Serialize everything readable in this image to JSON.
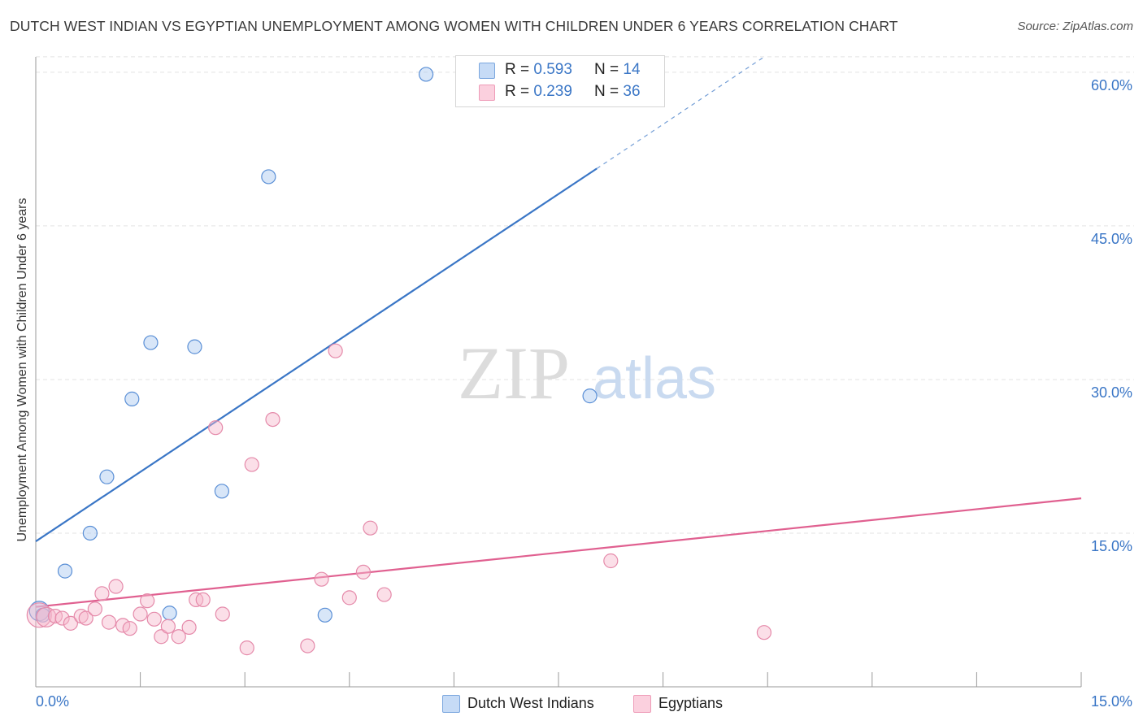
{
  "title": "DUTCH WEST INDIAN VS EGYPTIAN UNEMPLOYMENT AMONG WOMEN WITH CHILDREN UNDER 6 YEARS CORRELATION CHART",
  "source": "Source: ZipAtlas.com",
  "watermark": {
    "zip": "ZIP",
    "atlas": "atlas"
  },
  "legend_top": [
    {
      "r_label": "R = ",
      "r_value": "0.593",
      "n_label": "N = ",
      "n_value": "14",
      "color": "#a9c8f0"
    },
    {
      "r_label": "R = ",
      "r_value": "0.239",
      "n_label": "N = ",
      "n_value": "36",
      "color": "#f7b8cc"
    }
  ],
  "legend_bottom": [
    {
      "label": "Dutch West Indians",
      "color": "#a9c8f0"
    },
    {
      "label": "Egyptians",
      "color": "#f7b8cc"
    }
  ],
  "chart_data": {
    "type": "scatter",
    "xlabel": "",
    "ylabel": "Unemployment Among Women with Children Under 6 years",
    "xlim": [
      0,
      15
    ],
    "ylim": [
      0,
      61.5
    ],
    "x_tick_labels": [
      "0.0%",
      "15.0%"
    ],
    "y_ticks": [
      15,
      30,
      45,
      60
    ],
    "y_tick_labels": [
      "15.0%",
      "30.0%",
      "45.0%",
      "60.0%"
    ],
    "grid": true,
    "series": [
      {
        "name": "Dutch West Indians",
        "color": "#3a76c6",
        "fill": "#a9c8f0",
        "points": [
          [
            0.05,
            7.4
          ],
          [
            0.1,
            7.0
          ],
          [
            0.42,
            11.3
          ],
          [
            0.78,
            15.0
          ],
          [
            1.02,
            20.5
          ],
          [
            1.38,
            28.1
          ],
          [
            1.65,
            33.6
          ],
          [
            1.92,
            7.2
          ],
          [
            2.28,
            33.2
          ],
          [
            2.67,
            19.1
          ],
          [
            3.34,
            49.8
          ],
          [
            4.15,
            7.0
          ],
          [
            5.6,
            59.8
          ],
          [
            7.95,
            28.4
          ]
        ],
        "trend": {
          "x0": 0.0,
          "y0": 14.2,
          "x1": 8.05,
          "y1": 50.6,
          "dash_to_x": 10.45,
          "dash_to_y": 61.5
        }
      },
      {
        "name": "Egyptians",
        "color": "#e06090",
        "fill": "#f7b8cc",
        "points": [
          [
            0.05,
            7.0
          ],
          [
            0.15,
            6.8
          ],
          [
            0.28,
            6.9
          ],
          [
            0.38,
            6.7
          ],
          [
            0.5,
            6.2
          ],
          [
            0.65,
            6.9
          ],
          [
            0.72,
            6.7
          ],
          [
            0.85,
            7.6
          ],
          [
            0.95,
            9.1
          ],
          [
            1.05,
            6.3
          ],
          [
            1.15,
            9.8
          ],
          [
            1.25,
            6.0
          ],
          [
            1.35,
            5.7
          ],
          [
            1.5,
            7.1
          ],
          [
            1.6,
            8.4
          ],
          [
            1.7,
            6.6
          ],
          [
            1.8,
            4.9
          ],
          [
            1.9,
            5.9
          ],
          [
            2.05,
            4.9
          ],
          [
            2.2,
            5.8
          ],
          [
            2.3,
            8.5
          ],
          [
            2.4,
            8.5
          ],
          [
            2.58,
            25.3
          ],
          [
            2.68,
            7.1
          ],
          [
            3.03,
            3.8
          ],
          [
            3.1,
            21.7
          ],
          [
            3.4,
            26.1
          ],
          [
            3.9,
            4.0
          ],
          [
            4.1,
            10.5
          ],
          [
            4.3,
            32.8
          ],
          [
            4.5,
            8.7
          ],
          [
            4.7,
            11.2
          ],
          [
            4.8,
            15.5
          ],
          [
            5.0,
            9.0
          ],
          [
            8.25,
            12.3
          ],
          [
            10.45,
            5.3
          ]
        ],
        "trend": {
          "x0": 0.0,
          "y0": 7.8,
          "x1": 15.0,
          "y1": 18.4
        }
      }
    ]
  }
}
